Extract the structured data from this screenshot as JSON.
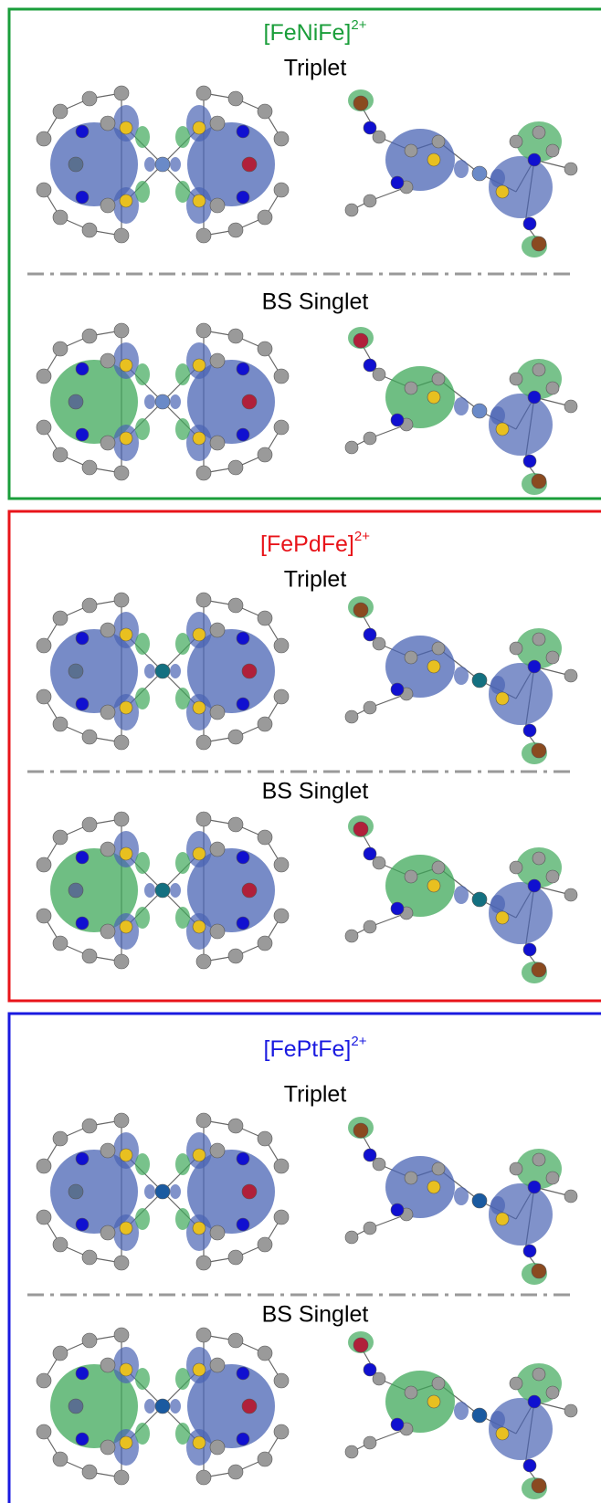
{
  "panels": [
    {
      "complex": "[FeNiFe]",
      "charge": "2+",
      "states": [
        "Triplet",
        "BS Singlet"
      ]
    },
    {
      "complex": "[FePdFe]",
      "charge": "2+",
      "states": [
        "Triplet",
        "BS Singlet"
      ]
    },
    {
      "complex": "[FePtFe]",
      "charge": "2+",
      "states": [
        "Triplet",
        "BS Singlet"
      ]
    }
  ]
}
